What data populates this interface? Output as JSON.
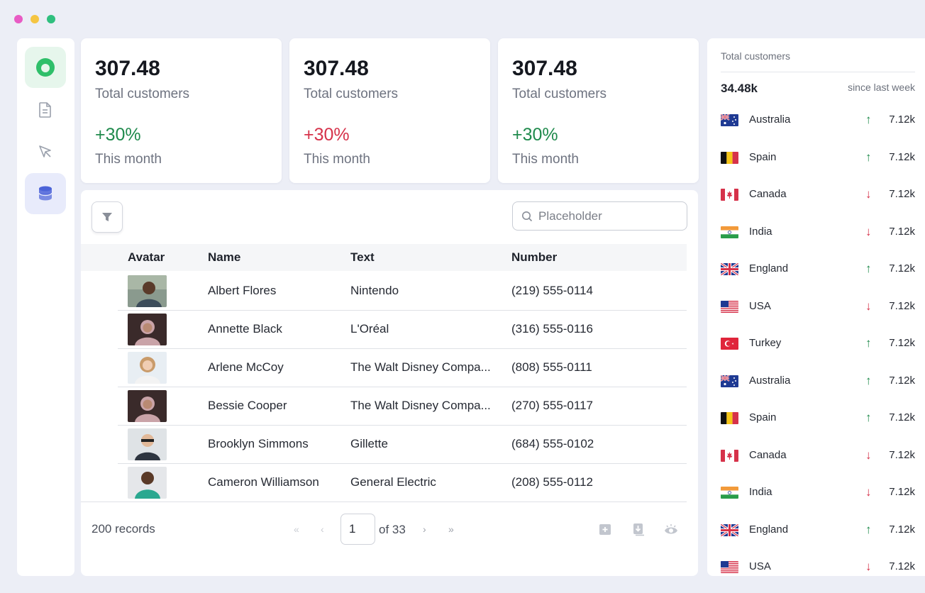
{
  "colors": {
    "window_dot_1": "#e85bc4",
    "window_dot_2": "#f5c542",
    "window_dot_3": "#2fbf7e",
    "positive": "#1f8a4c",
    "negative": "#d6324a",
    "brand_green": "#2fbf6a",
    "active_nav_bg": "#e8ebfb",
    "active_nav_icon": "#4b63d8"
  },
  "sidebar": {
    "items": [
      {
        "icon": "logo-icon",
        "active": true
      },
      {
        "icon": "document-icon",
        "active": false
      },
      {
        "icon": "cursor-icon",
        "active": false
      },
      {
        "icon": "database-icon",
        "active": true
      }
    ]
  },
  "stats": [
    {
      "value": "307.48",
      "label": "Total customers",
      "change": "+30%",
      "trend": "positive",
      "period": "This month"
    },
    {
      "value": "307.48",
      "label": "Total customers",
      "change": "+30%",
      "trend": "negative",
      "period": "This month"
    },
    {
      "value": "307.48",
      "label": "Total customers",
      "change": "+30%",
      "trend": "positive",
      "period": "This month"
    }
  ],
  "table": {
    "search_placeholder": "Placeholder",
    "columns": {
      "avatar": "Avatar",
      "name": "Name",
      "text": "Text",
      "number": "Number"
    },
    "rows": [
      {
        "name": "Albert Flores",
        "text": "Nintendo",
        "number": "(219) 555-0114"
      },
      {
        "name": "Annette Black",
        "text": "L'Oréal",
        "number": "(316) 555-0116"
      },
      {
        "name": "Arlene McCoy",
        "text": "The Walt Disney Compa...",
        "number": "(808) 555-0111"
      },
      {
        "name": "Bessie Cooper",
        "text": "The Walt Disney Compa...",
        "number": "(270) 555-0117"
      },
      {
        "name": "Brooklyn Simmons",
        "text": "Gillette",
        "number": "(684) 555-0102"
      },
      {
        "name": "Cameron Williamson",
        "text": "General Electric",
        "number": "(208) 555-0112"
      }
    ],
    "footer": {
      "records": "200 records",
      "page": "1",
      "of_pages": "of 33",
      "first_icon": "«",
      "prev_icon": "‹",
      "next_icon": "›",
      "last_icon": "»"
    }
  },
  "customers_panel": {
    "title": "Total customers",
    "total": "34.48k",
    "since": "since last week",
    "rows": [
      {
        "country": "Australia",
        "flag": "australia",
        "trend": "up",
        "value": "7.12k"
      },
      {
        "country": "Spain",
        "flag": "spain",
        "trend": "up",
        "value": "7.12k"
      },
      {
        "country": "Canada",
        "flag": "canada",
        "trend": "down",
        "value": "7.12k"
      },
      {
        "country": "India",
        "flag": "india",
        "trend": "down",
        "value": "7.12k"
      },
      {
        "country": "England",
        "flag": "uk",
        "trend": "up",
        "value": "7.12k"
      },
      {
        "country": "USA",
        "flag": "usa",
        "trend": "down",
        "value": "7.12k"
      },
      {
        "country": "Turkey",
        "flag": "turkey",
        "trend": "up",
        "value": "7.12k"
      },
      {
        "country": "Australia",
        "flag": "australia",
        "trend": "up",
        "value": "7.12k"
      },
      {
        "country": "Spain",
        "flag": "spain",
        "trend": "up",
        "value": "7.12k"
      },
      {
        "country": "Canada",
        "flag": "canada",
        "trend": "down",
        "value": "7.12k"
      },
      {
        "country": "India",
        "flag": "india",
        "trend": "down",
        "value": "7.12k"
      },
      {
        "country": "England",
        "flag": "uk",
        "trend": "up",
        "value": "7.12k"
      },
      {
        "country": "USA",
        "flag": "usa",
        "trend": "down",
        "value": "7.12k"
      }
    ]
  }
}
